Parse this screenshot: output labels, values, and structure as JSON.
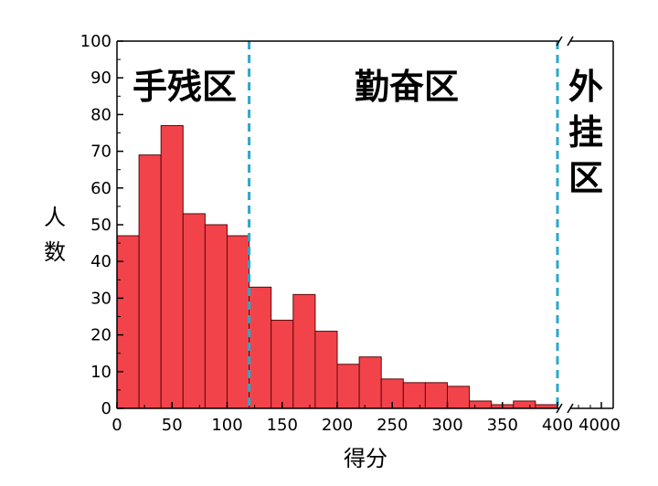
{
  "chart_data": {
    "type": "bar",
    "subtype": "histogram",
    "xlabel": "得分",
    "ylabel": "人数",
    "ylim": [
      0,
      100
    ],
    "xlim": [
      0,
      400
    ],
    "x_broken_axis": true,
    "x_after_break_ticks": [
      "4000"
    ],
    "grid": false,
    "bin_width": 20,
    "bins": [
      {
        "x0": 0,
        "x1": 20,
        "value": 47
      },
      {
        "x0": 20,
        "x1": 40,
        "value": 69
      },
      {
        "x0": 40,
        "x1": 60,
        "value": 77
      },
      {
        "x0": 60,
        "x1": 80,
        "value": 53
      },
      {
        "x0": 80,
        "x1": 100,
        "value": 50
      },
      {
        "x0": 100,
        "x1": 120,
        "value": 47
      },
      {
        "x0": 120,
        "x1": 140,
        "value": 33
      },
      {
        "x0": 140,
        "x1": 160,
        "value": 24
      },
      {
        "x0": 160,
        "x1": 180,
        "value": 31
      },
      {
        "x0": 180,
        "x1": 200,
        "value": 21
      },
      {
        "x0": 200,
        "x1": 220,
        "value": 12
      },
      {
        "x0": 220,
        "x1": 240,
        "value": 14
      },
      {
        "x0": 240,
        "x1": 260,
        "value": 8
      },
      {
        "x0": 260,
        "x1": 280,
        "value": 7
      },
      {
        "x0": 280,
        "x1": 300,
        "value": 7
      },
      {
        "x0": 300,
        "x1": 320,
        "value": 6
      },
      {
        "x0": 320,
        "x1": 340,
        "value": 2
      },
      {
        "x0": 340,
        "x1": 360,
        "value": 1
      },
      {
        "x0": 360,
        "x1": 380,
        "value": 2
      },
      {
        "x0": 380,
        "x1": 400,
        "value": 1
      }
    ],
    "x_ticks": [
      0,
      50,
      100,
      150,
      200,
      250,
      300,
      350,
      400
    ],
    "y_ticks": [
      0,
      10,
      20,
      30,
      40,
      50,
      60,
      70,
      80,
      90,
      100
    ],
    "thresholds": [
      120,
      400
    ],
    "regions": [
      {
        "label": "手残区"
      },
      {
        "label": "勤奋区"
      },
      {
        "label": "外挂区"
      }
    ],
    "colors": {
      "bar_fill": "#f2434b",
      "bar_stroke": "#5a0a0a",
      "threshold_line": "#2aa8cc",
      "axis": "#000000"
    }
  }
}
